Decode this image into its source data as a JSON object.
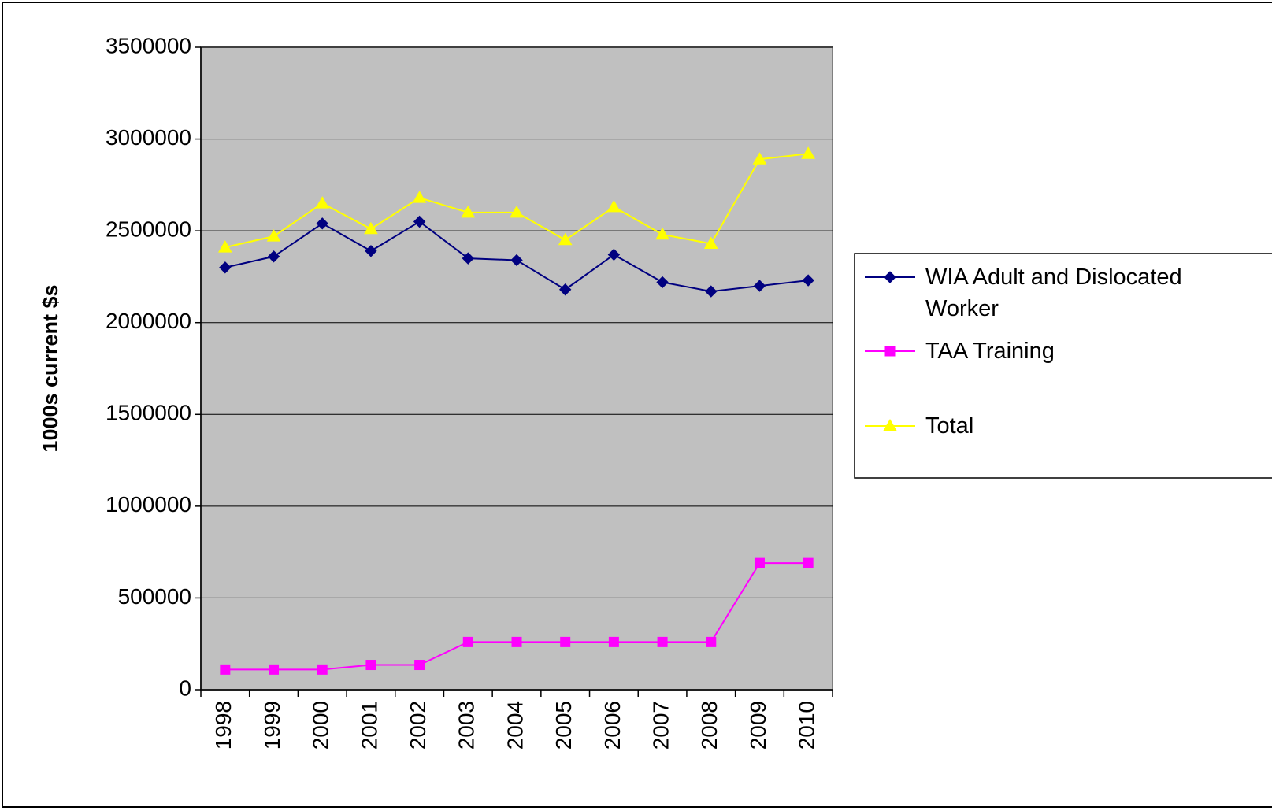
{
  "chart_data": {
    "type": "line",
    "y_label": "1000s current $s",
    "categories": [
      "1998",
      "1999",
      "2000",
      "2001",
      "2002",
      "2003",
      "2004",
      "2005",
      "2006",
      "2007",
      "2008",
      "2009",
      "2010"
    ],
    "series": [
      {
        "name": "WIA Adult and Dislocated Worker",
        "color": "#000080",
        "marker": "diamond",
        "values": [
          2300000,
          2360000,
          2540000,
          2390000,
          2550000,
          2350000,
          2340000,
          2180000,
          2370000,
          2220000,
          2170000,
          2200000,
          2230000
        ]
      },
      {
        "name": "TAA Training",
        "color": "#ff00ff",
        "marker": "square",
        "values": [
          110000,
          110000,
          110000,
          135000,
          135000,
          260000,
          260000,
          260000,
          260000,
          260000,
          260000,
          690000,
          690000
        ]
      },
      {
        "name": "Total",
        "color": "#ffff00",
        "marker": "triangle",
        "values": [
          2410000,
          2470000,
          2650000,
          2510000,
          2680000,
          2600000,
          2600000,
          2450000,
          2630000,
          2480000,
          2430000,
          2890000,
          2920000
        ]
      }
    ],
    "ylim": [
      0,
      3500000
    ],
    "yticks": [
      0,
      500000,
      1000000,
      1500000,
      2000000,
      2500000,
      3000000,
      3500000
    ],
    "grid": true,
    "legend": "right"
  }
}
